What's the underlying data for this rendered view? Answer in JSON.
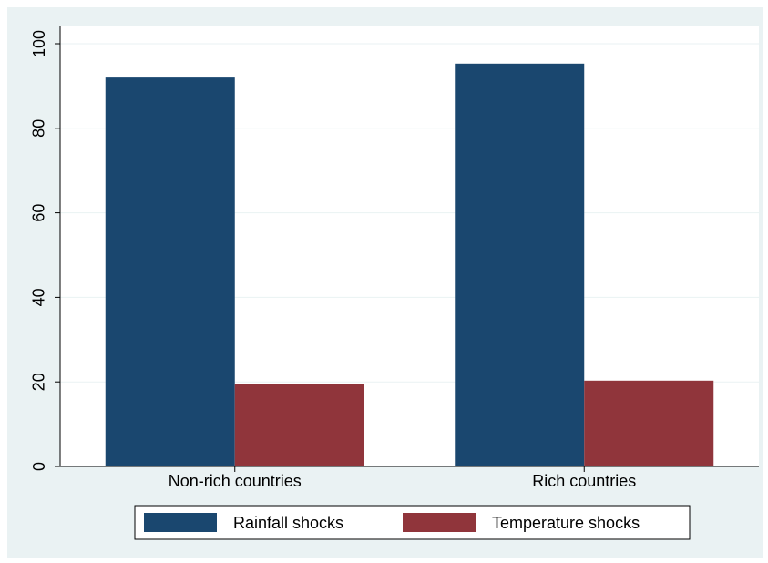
{
  "chart_data": {
    "type": "bar",
    "categories": [
      "Non-rich countries",
      "Rich countries"
    ],
    "series": [
      {
        "name": "Rainfall shocks",
        "color": "#1a476f",
        "values": [
          92,
          95.3
        ]
      },
      {
        "name": "Temperature shocks",
        "color": "#90353b",
        "values": [
          19.4,
          20.3
        ]
      }
    ],
    "ylim": [
      0,
      100
    ],
    "yticks": [
      0,
      20,
      40,
      60,
      80,
      100
    ],
    "grid": true
  }
}
